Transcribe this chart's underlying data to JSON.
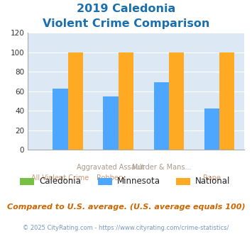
{
  "title_line1": "2019 Caledonia",
  "title_line2": "Violent Crime Comparison",
  "series": {
    "Caledonia": [
      0,
      0,
      0,
      0
    ],
    "Minnesota": [
      63,
      55,
      69,
      42
    ],
    "National": [
      100,
      100,
      100,
      100
    ]
  },
  "x_labels_top": [
    "",
    "Aggravated Assault",
    "Murder & Mans...",
    ""
  ],
  "x_labels_bot": [
    "All Violent Crime",
    "Robbery",
    "",
    "Rape"
  ],
  "colors": {
    "Caledonia": "#76c043",
    "Minnesota": "#4da6ff",
    "National": "#ffaa22"
  },
  "ylim": [
    0,
    120
  ],
  "yticks": [
    0,
    20,
    40,
    60,
    80,
    100,
    120
  ],
  "title_color": "#1a6faf",
  "background_color": "#dce9f5",
  "note": "Compared to U.S. average. (U.S. average equals 100)",
  "footer": "© 2025 CityRating.com - https://www.cityrating.com/crime-statistics/",
  "note_color": "#cc6600",
  "footer_color": "#7799bb",
  "label_top_color": "#aa9988",
  "label_bot_color": "#cc9977",
  "legend_label_color": "#222222"
}
